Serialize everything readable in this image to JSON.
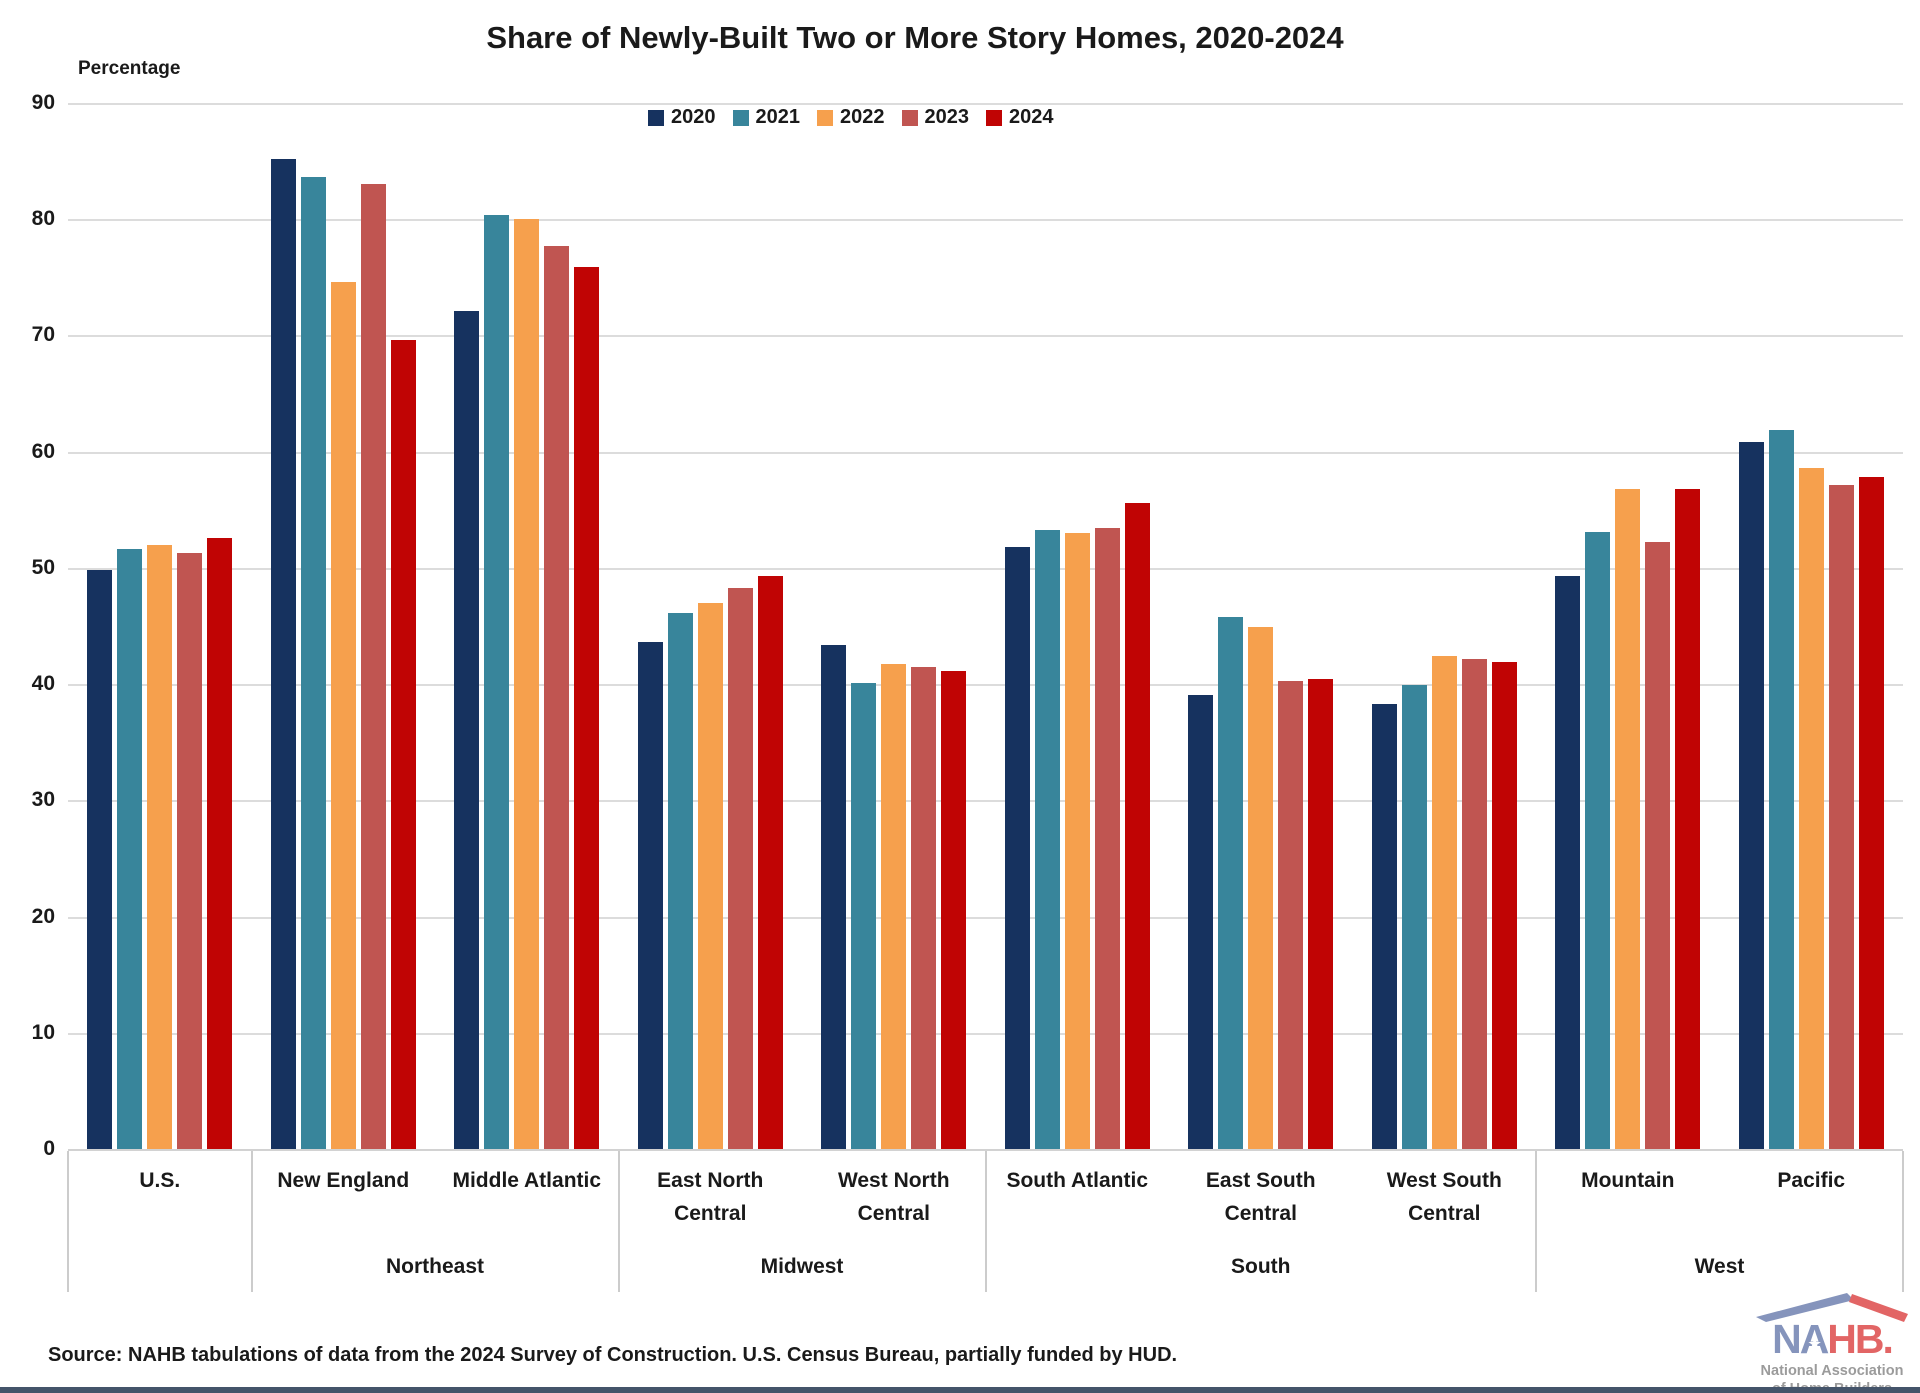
{
  "title": "Share of Newly-Built Two or More Story Homes, 2020-2024",
  "y_axis": {
    "label": "Percentage",
    "ticks": [
      "90",
      "80",
      "70",
      "60",
      "50",
      "40",
      "30",
      "20",
      "10",
      "0"
    ]
  },
  "source": "Source: NAHB tabulations of data from the 2024 Survey of Construction. U.S. Census Bureau, partially funded by HUD.",
  "logo": {
    "brand_na": "NA",
    "brand_a": "A",
    "brand_hb": "HB",
    "dot": ".",
    "star": "★",
    "subline1": "National Association",
    "subline2": "of Home Builders",
    "na_color": "#8594bc",
    "hb_color": "#e26565"
  },
  "chart_data": {
    "type": "bar",
    "title": "Share of Newly-Built Two or More Story Homes, 2020-2024",
    "xlabel": "",
    "ylabel": "Percentage",
    "ylim": [
      0,
      90
    ],
    "grid": true,
    "legend_position": "top",
    "categories": [
      "U.S.",
      "New England",
      "Middle Atlantic",
      "East North Central",
      "West North Central",
      "South Atlantic",
      "East South Central",
      "West South Central",
      "Mountain",
      "Pacific"
    ],
    "category_lines": [
      [
        "U.S."
      ],
      [
        "New England"
      ],
      [
        "Middle Atlantic"
      ],
      [
        "East North",
        "Central"
      ],
      [
        "West North",
        "Central"
      ],
      [
        "South Atlantic"
      ],
      [
        "East South",
        "Central"
      ],
      [
        "West South",
        "Central"
      ],
      [
        "Mountain"
      ],
      [
        "Pacific"
      ]
    ],
    "divisions": [
      {
        "label": "",
        "span": 1
      },
      {
        "label": "Northeast",
        "span": 2
      },
      {
        "label": "Midwest",
        "span": 2
      },
      {
        "label": "South",
        "span": 3
      },
      {
        "label": "West",
        "span": 2
      }
    ],
    "series": [
      {
        "name": "2020",
        "color": "#16325F",
        "values": [
          49.8,
          85.2,
          72.1,
          43.6,
          43.4,
          51.8,
          39.1,
          38.3,
          49.3,
          60.8
        ]
      },
      {
        "name": "2021",
        "color": "#38859B",
        "values": [
          51.6,
          83.6,
          80.4,
          46.1,
          40.1,
          53.3,
          45.8,
          39.9,
          53.1,
          61.9
        ]
      },
      {
        "name": "2022",
        "color": "#F6A04D",
        "values": [
          52.0,
          74.6,
          80.0,
          47.0,
          41.7,
          53.0,
          44.9,
          42.4,
          56.8,
          58.6
        ]
      },
      {
        "name": "2023",
        "color": "#C05551",
        "values": [
          51.3,
          83.0,
          77.7,
          48.3,
          41.5,
          53.4,
          40.3,
          42.2,
          52.2,
          57.1
        ]
      },
      {
        "name": "2024",
        "color": "#C00404",
        "values": [
          52.6,
          69.6,
          75.9,
          49.3,
          41.1,
          55.6,
          40.4,
          41.9,
          56.8,
          57.8
        ]
      }
    ]
  }
}
